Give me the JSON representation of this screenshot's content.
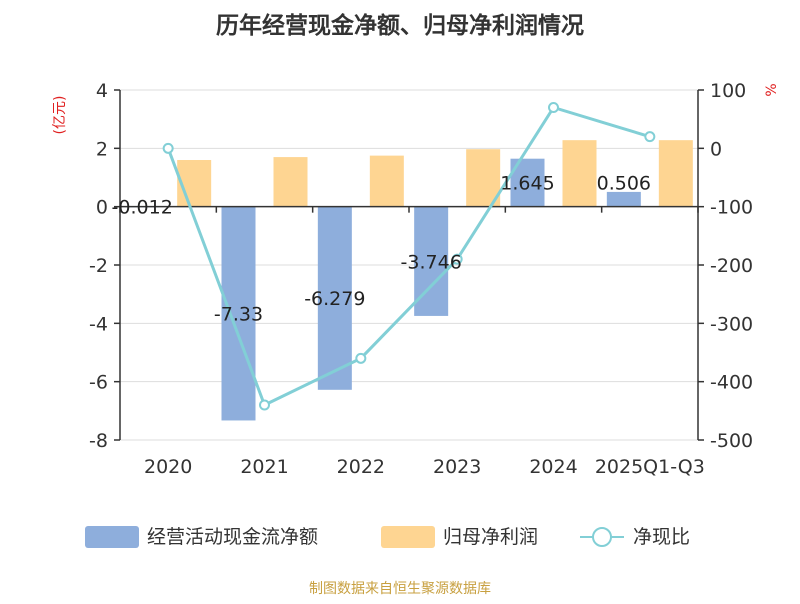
{
  "chart_data": {
    "type": "bar",
    "title": "历年经营现金净额、归母净利润情况",
    "categories": [
      "2020",
      "2021",
      "2022",
      "2023",
      "2024",
      "2025Q1-Q3"
    ],
    "series": [
      {
        "name": "经营活动现金流净额",
        "type": "bar",
        "axis": "left",
        "color": "#8eaedc",
        "values": [
          -0.012,
          -7.33,
          -6.279,
          -3.746,
          1.645,
          0.506
        ],
        "labels": [
          "-0.012",
          "-7.33",
          "-6.279",
          "-3.746",
          "1.645",
          "0.506"
        ]
      },
      {
        "name": "归母净利润",
        "type": "bar",
        "axis": "left",
        "color": "#fed592",
        "values": [
          1.6,
          1.7,
          1.75,
          1.97,
          2.28,
          2.28
        ]
      },
      {
        "name": "净现比",
        "type": "line",
        "axis": "right",
        "color": "#82cfd6",
        "values": [
          0,
          -440,
          -360,
          -190,
          70,
          20
        ]
      }
    ],
    "ylabel_left": "(亿元)",
    "ylabel_right": "%",
    "ylim_left": [
      -8,
      4
    ],
    "ylim_right": [
      -500,
      100
    ],
    "yticks_left": [
      "4",
      "2",
      "0",
      "-2",
      "-4",
      "-6",
      "-8"
    ],
    "yticks_right": [
      "100",
      "0",
      "-100",
      "-200",
      "-300",
      "-400",
      "-500"
    ],
    "legend_position": "bottom",
    "source": "制图数据来自恒生聚源数据库",
    "colors": {
      "left_axis_label": "#e02020",
      "right_axis_label": "#e02020",
      "source": "#c8a040",
      "grid": "#dddddd"
    }
  }
}
